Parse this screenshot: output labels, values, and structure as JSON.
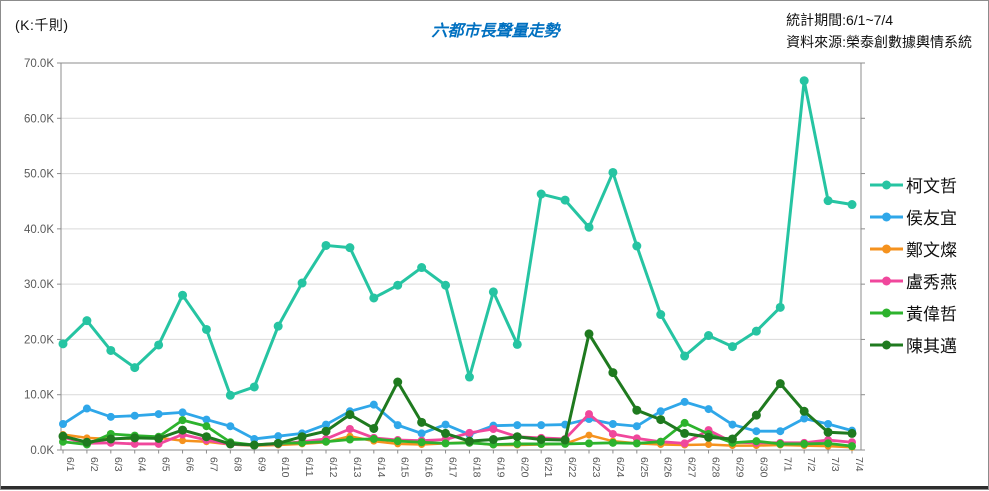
{
  "header": {
    "unit_label": "(K:千則)",
    "title": "六都市長聲量走勢",
    "period_label": "統計期間:6/1~7/4",
    "source_label": "資料來源:榮泰創數據輿情系統"
  },
  "colors": {
    "title": "#0070C0",
    "axis_text": "#595959",
    "gridline": "#D9D9D9",
    "frame": "#8c8c8c"
  },
  "chart_data": {
    "type": "line",
    "title": "六都市長聲量走勢",
    "unit": "K:千則",
    "grid": true,
    "legend_position": "right",
    "ylim": [
      0,
      70
    ],
    "ytick_labels": [
      "0.0K",
      "10.0K",
      "20.0K",
      "30.0K",
      "40.0K",
      "50.0K",
      "60.0K",
      "70.0K"
    ],
    "categories": [
      "6/1",
      "6/2",
      "6/3",
      "6/4",
      "6/5",
      "6/6",
      "6/7",
      "6/8",
      "6/9",
      "6/10",
      "6/11",
      "6/12",
      "6/13",
      "6/14",
      "6/15",
      "6/16",
      "6/17",
      "6/18",
      "6/19",
      "6/20",
      "6/21",
      "6/22",
      "6/23",
      "6/24",
      "6/25",
      "6/26",
      "6/27",
      "6/28",
      "6/29",
      "6/30",
      "7/1",
      "7/2",
      "7/3",
      "7/4"
    ],
    "series": [
      {
        "name": "柯文哲",
        "color": "#26C4A2",
        "values": [
          19.2,
          23.4,
          18.0,
          14.9,
          19.0,
          28.0,
          21.8,
          9.9,
          11.4,
          22.4,
          30.2,
          37.0,
          36.6,
          27.5,
          29.8,
          33.0,
          29.8,
          13.2,
          28.6,
          19.1,
          46.3,
          45.2,
          40.3,
          50.2,
          36.9,
          24.5,
          17.0,
          20.7,
          18.7,
          21.5,
          25.8,
          66.8,
          45.1,
          44.4
        ]
      },
      {
        "name": "侯友宜",
        "color": "#2FA7E9",
        "values": [
          4.7,
          7.5,
          6.0,
          6.2,
          6.5,
          6.8,
          5.5,
          4.3,
          2.0,
          2.5,
          3.0,
          4.6,
          7.0,
          8.2,
          4.5,
          3.0,
          4.6,
          2.8,
          4.4,
          4.5,
          4.5,
          4.6,
          5.6,
          4.7,
          4.3,
          7.0,
          8.7,
          7.4,
          4.6,
          3.4,
          3.4,
          5.7,
          4.7,
          3.5
        ]
      },
      {
        "name": "鄭文燦",
        "color": "#F5921E",
        "values": [
          2.8,
          2.2,
          2.0,
          2.1,
          2.2,
          1.7,
          1.5,
          1.0,
          0.8,
          0.9,
          1.1,
          1.4,
          2.5,
          1.6,
          1.1,
          1.0,
          1.2,
          1.4,
          0.9,
          0.9,
          1.0,
          1.1,
          2.7,
          1.6,
          1.2,
          1.0,
          0.9,
          1.0,
          0.8,
          0.8,
          0.9,
          0.8,
          0.7,
          0.5
        ]
      },
      {
        "name": "盧秀燕",
        "color": "#F0479C",
        "values": [
          2.3,
          1.2,
          1.3,
          1.1,
          1.1,
          2.8,
          1.8,
          1.0,
          0.9,
          1.1,
          1.5,
          2.0,
          3.8,
          2.2,
          1.8,
          1.7,
          1.9,
          3.1,
          3.8,
          2.4,
          2.2,
          2.0,
          6.5,
          2.9,
          2.1,
          1.5,
          1.2,
          3.6,
          1.4,
          1.3,
          1.3,
          1.3,
          1.8,
          1.4
        ]
      },
      {
        "name": "黃偉哲",
        "color": "#2DB32D",
        "values": [
          1.5,
          1.0,
          2.9,
          2.6,
          2.4,
          5.4,
          4.3,
          1.4,
          0.9,
          1.2,
          1.3,
          1.5,
          1.9,
          2.0,
          1.6,
          1.4,
          1.2,
          1.3,
          1.0,
          1.1,
          1.1,
          1.1,
          1.2,
          1.3,
          1.2,
          1.5,
          4.9,
          2.9,
          1.3,
          1.6,
          1.1,
          1.1,
          1.2,
          0.7
        ]
      },
      {
        "name": "陳其邁",
        "color": "#1F7A1F",
        "values": [
          2.5,
          1.4,
          2.0,
          2.2,
          2.1,
          3.6,
          2.4,
          1.1,
          0.9,
          1.2,
          2.4,
          3.4,
          6.4,
          3.9,
          12.3,
          5.0,
          3.0,
          1.6,
          1.9,
          2.4,
          1.9,
          1.8,
          21.0,
          14.0,
          7.2,
          5.5,
          3.0,
          2.3,
          2.0,
          6.3,
          12.0,
          7.0,
          3.2,
          3.0
        ]
      }
    ]
  }
}
